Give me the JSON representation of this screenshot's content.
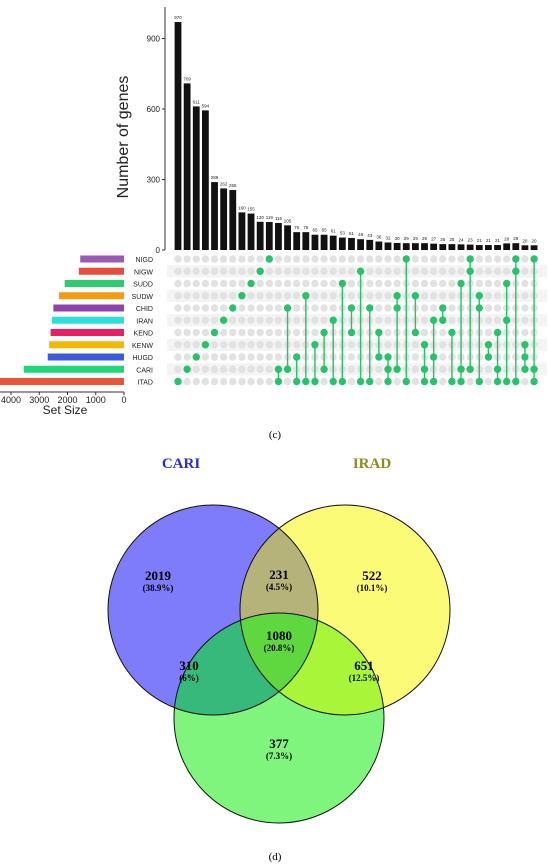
{
  "panels": {
    "upset_label": "(c)",
    "venn_label": "(d)"
  },
  "chart_data": [
    {
      "type": "bar",
      "subtype": "upset",
      "ylabel": "Number of genes",
      "ylim": [
        0,
        1000
      ],
      "yticks": [
        0,
        300,
        600,
        900
      ],
      "intersection_values": [
        970,
        709,
        611,
        594,
        289,
        262,
        255,
        160,
        155,
        120,
        119,
        115,
        105,
        76,
        76,
        65,
        65,
        61,
        53,
        51,
        46,
        43,
        36,
        32,
        30,
        29,
        29,
        29,
        27,
        25,
        25,
        24,
        23,
        21,
        21,
        21,
        28,
        29,
        20,
        20
      ],
      "sets": [
        "NIGD",
        "NIGW",
        "SUDD",
        "SUDW",
        "CHID",
        "IRAN",
        "KEND",
        "KENW",
        "HUGD",
        "CARI",
        "ITAD"
      ],
      "set_colors": [
        "#9b59b6",
        "#e74c3c",
        "#2ecc71",
        "#f39c12",
        "#8e44ad",
        "#2ce0d8",
        "#e91e63",
        "#f5b800",
        "#3b5bdb",
        "#1fd67a",
        "#e8553a"
      ],
      "set_sizes": [
        1550,
        1600,
        2100,
        2300,
        2500,
        2550,
        2600,
        2650,
        2700,
        3550,
        4400
      ],
      "set_size_label": "Set Size",
      "set_size_ticks": [
        4000,
        3000,
        2000,
        1000,
        0
      ],
      "set_size_lim": [
        0,
        4500
      ],
      "dot_active_color": "#27c26a",
      "dot_inactive_color": "#e2e2e2"
    },
    {
      "type": "venn",
      "sets": [
        {
          "name": "CARI",
          "color": "#7e7cfb",
          "title_color": "#2a2ad0"
        },
        {
          "name": "IRAD",
          "color": "#fbfb78",
          "title_color": "#8a8a22"
        },
        {
          "name": "",
          "color": "#7ff57e",
          "title_color": "#000000"
        }
      ],
      "regions": [
        {
          "key": "cari_only",
          "count": "2019",
          "pct": "(38.9%)"
        },
        {
          "key": "cari_irad",
          "count": "231",
          "pct": "(4.5%)"
        },
        {
          "key": "irad_only",
          "count": "522",
          "pct": "(10.1%)"
        },
        {
          "key": "all_three",
          "count": "1080",
          "pct": "(20.8%)"
        },
        {
          "key": "cari_third",
          "count": "310",
          "pct": "(6%)"
        },
        {
          "key": "irad_third",
          "count": "651",
          "pct": "(12.5%)"
        },
        {
          "key": "third_only",
          "count": "377",
          "pct": "(7.3%)"
        }
      ]
    }
  ]
}
